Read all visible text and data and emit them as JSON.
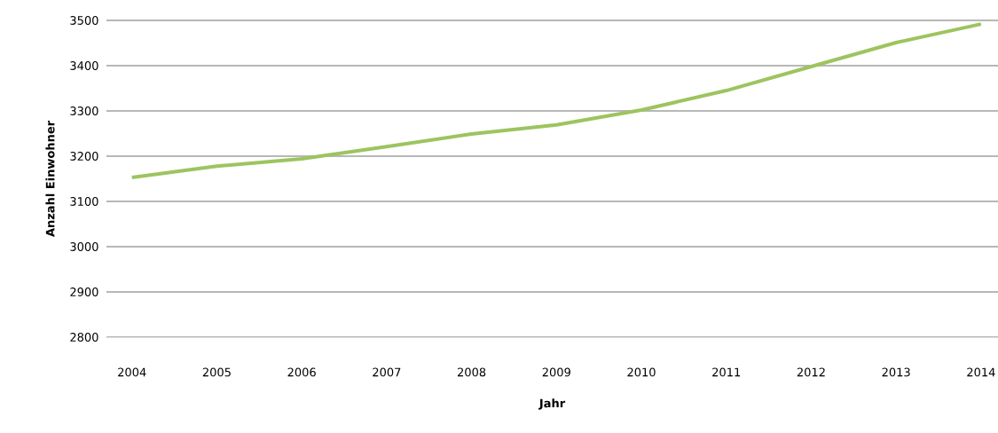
{
  "chart_data": {
    "type": "line",
    "xlabel": "Jahr",
    "ylabel": "Anzahl Einwohner",
    "x": [
      2004,
      2005,
      2006,
      2007,
      2008,
      2009,
      2010,
      2011,
      2012,
      2013,
      2014
    ],
    "values": [
      3153,
      3178,
      3194,
      3221,
      3249,
      3269,
      3302,
      3345,
      3398,
      3451,
      3492
    ],
    "color": "#9dc45f",
    "xlim": [
      2003.7,
      2014.2
    ],
    "ylim": [
      2800,
      3500
    ],
    "xticks": [
      2004,
      2005,
      2006,
      2007,
      2008,
      2009,
      2010,
      2011,
      2012,
      2013,
      2014
    ],
    "yticks": [
      2800,
      2900,
      3000,
      3100,
      3200,
      3300,
      3400,
      3500
    ],
    "grid": "y",
    "marker": "none",
    "line_style": "solid"
  }
}
